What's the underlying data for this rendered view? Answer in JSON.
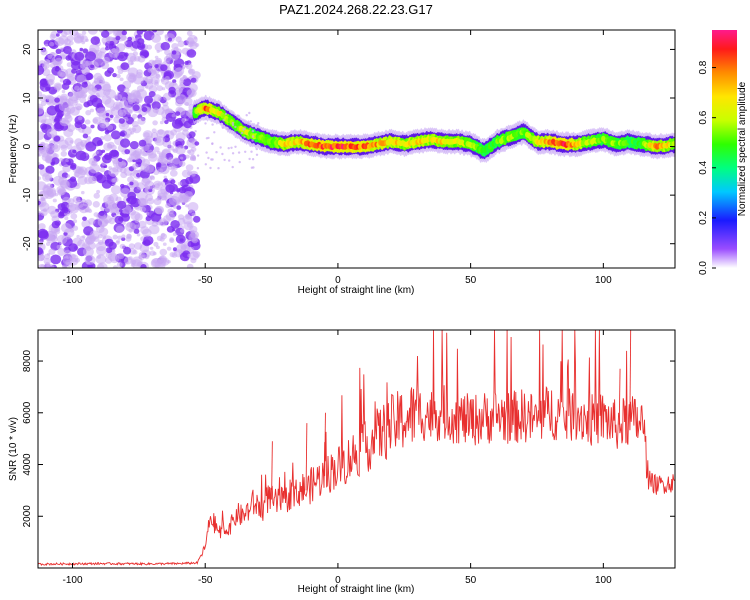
{
  "title": "PAZ1.2024.268.22.23.G17",
  "chart_data": [
    {
      "type": "heatmap",
      "xlabel": "Height of straight line (km)",
      "ylabel": "Frequency (Hz)",
      "xlim": [
        -113,
        127
      ],
      "ylim": [
        -25,
        24
      ],
      "xticks": [
        -100,
        -50,
        0,
        50,
        100
      ],
      "yticks": [
        -20,
        -10,
        0,
        10,
        20
      ],
      "colorbar": {
        "label": "Normalized spectral amplitude",
        "range": [
          0,
          0.95
        ],
        "ticks": [
          0.0,
          0.2,
          0.4,
          0.6,
          0.8
        ]
      },
      "noise_region_x": [
        -113,
        -53
      ],
      "ridge": {
        "x": [
          -54,
          -50,
          -45,
          -40,
          -35,
          -30,
          -25,
          -20,
          -15,
          -10,
          -5,
          0,
          5,
          10,
          15,
          20,
          25,
          30,
          35,
          40,
          45,
          50,
          55,
          60,
          65,
          70,
          75,
          80,
          85,
          90,
          95,
          100,
          105,
          110,
          115,
          120,
          127
        ],
        "frequency": [
          7,
          8,
          7,
          5,
          3,
          2,
          1,
          0.5,
          1,
          0.5,
          0,
          0,
          0,
          0,
          0.5,
          1,
          0.5,
          1,
          1.5,
          1,
          1,
          0.5,
          -1,
          1,
          2,
          3,
          1,
          1,
          0.5,
          0.5,
          1,
          1.5,
          0.5,
          1,
          0.5,
          0,
          0.5
        ],
        "amplitude": [
          0.55,
          0.85,
          0.7,
          0.6,
          0.65,
          0.55,
          0.6,
          0.7,
          0.75,
          0.85,
          0.9,
          0.92,
          0.9,
          0.85,
          0.8,
          0.75,
          0.7,
          0.75,
          0.7,
          0.72,
          0.65,
          0.6,
          0.5,
          0.55,
          0.6,
          0.55,
          0.7,
          0.85,
          0.9,
          0.75,
          0.6,
          0.55,
          0.6,
          0.5,
          0.55,
          0.8,
          0.65
        ]
      },
      "grid": false
    },
    {
      "type": "line",
      "xlabel": "Height of straight line (km)",
      "ylabel": "SNR (10 * v/v)",
      "xlim": [
        -113,
        127
      ],
      "ylim": [
        0,
        9200
      ],
      "xticks": [
        -100,
        -50,
        0,
        50,
        100
      ],
      "yticks": [
        2000,
        4000,
        6000,
        8000
      ],
      "color": "#e8302f",
      "series": [
        {
          "x": [
            -113,
            -100,
            -90,
            -80,
            -70,
            -60,
            -53,
            -50,
            -48,
            -46,
            -44,
            -42,
            -40,
            -38,
            -36,
            -34,
            -32,
            -30,
            -28,
            -26,
            -24,
            -22,
            -20,
            -18,
            -16,
            -14,
            -12,
            -10,
            -8,
            -6,
            -4,
            -2,
            0,
            2,
            4,
            6,
            8,
            10,
            12,
            14,
            16,
            18,
            20,
            22,
            24,
            26,
            28,
            30,
            35,
            40,
            45,
            50,
            55,
            60,
            65,
            70,
            75,
            80,
            85,
            90,
            95,
            100,
            105,
            110,
            115,
            117,
            120,
            125,
            127
          ],
          "y": [
            150,
            160,
            170,
            165,
            160,
            170,
            200,
            800,
            2000,
            1600,
            1300,
            1500,
            1700,
            2100,
            2000,
            2200,
            2500,
            2400,
            2300,
            2800,
            2500,
            2600,
            2500,
            2900,
            2800,
            3100,
            3000,
            3200,
            3400,
            3500,
            3600,
            3800,
            3900,
            4000,
            4200,
            4400,
            4500,
            4600,
            4800,
            5000,
            5200,
            5300,
            5500,
            5600,
            5700,
            5800,
            5900,
            6000,
            5900,
            6000,
            5800,
            5700,
            5800,
            5900,
            5800,
            5900,
            5700,
            6100,
            5800,
            6000,
            5700,
            5800,
            5500,
            5700,
            5600,
            3400,
            3200,
            3300,
            3300
          ]
        }
      ],
      "grid": false
    }
  ]
}
